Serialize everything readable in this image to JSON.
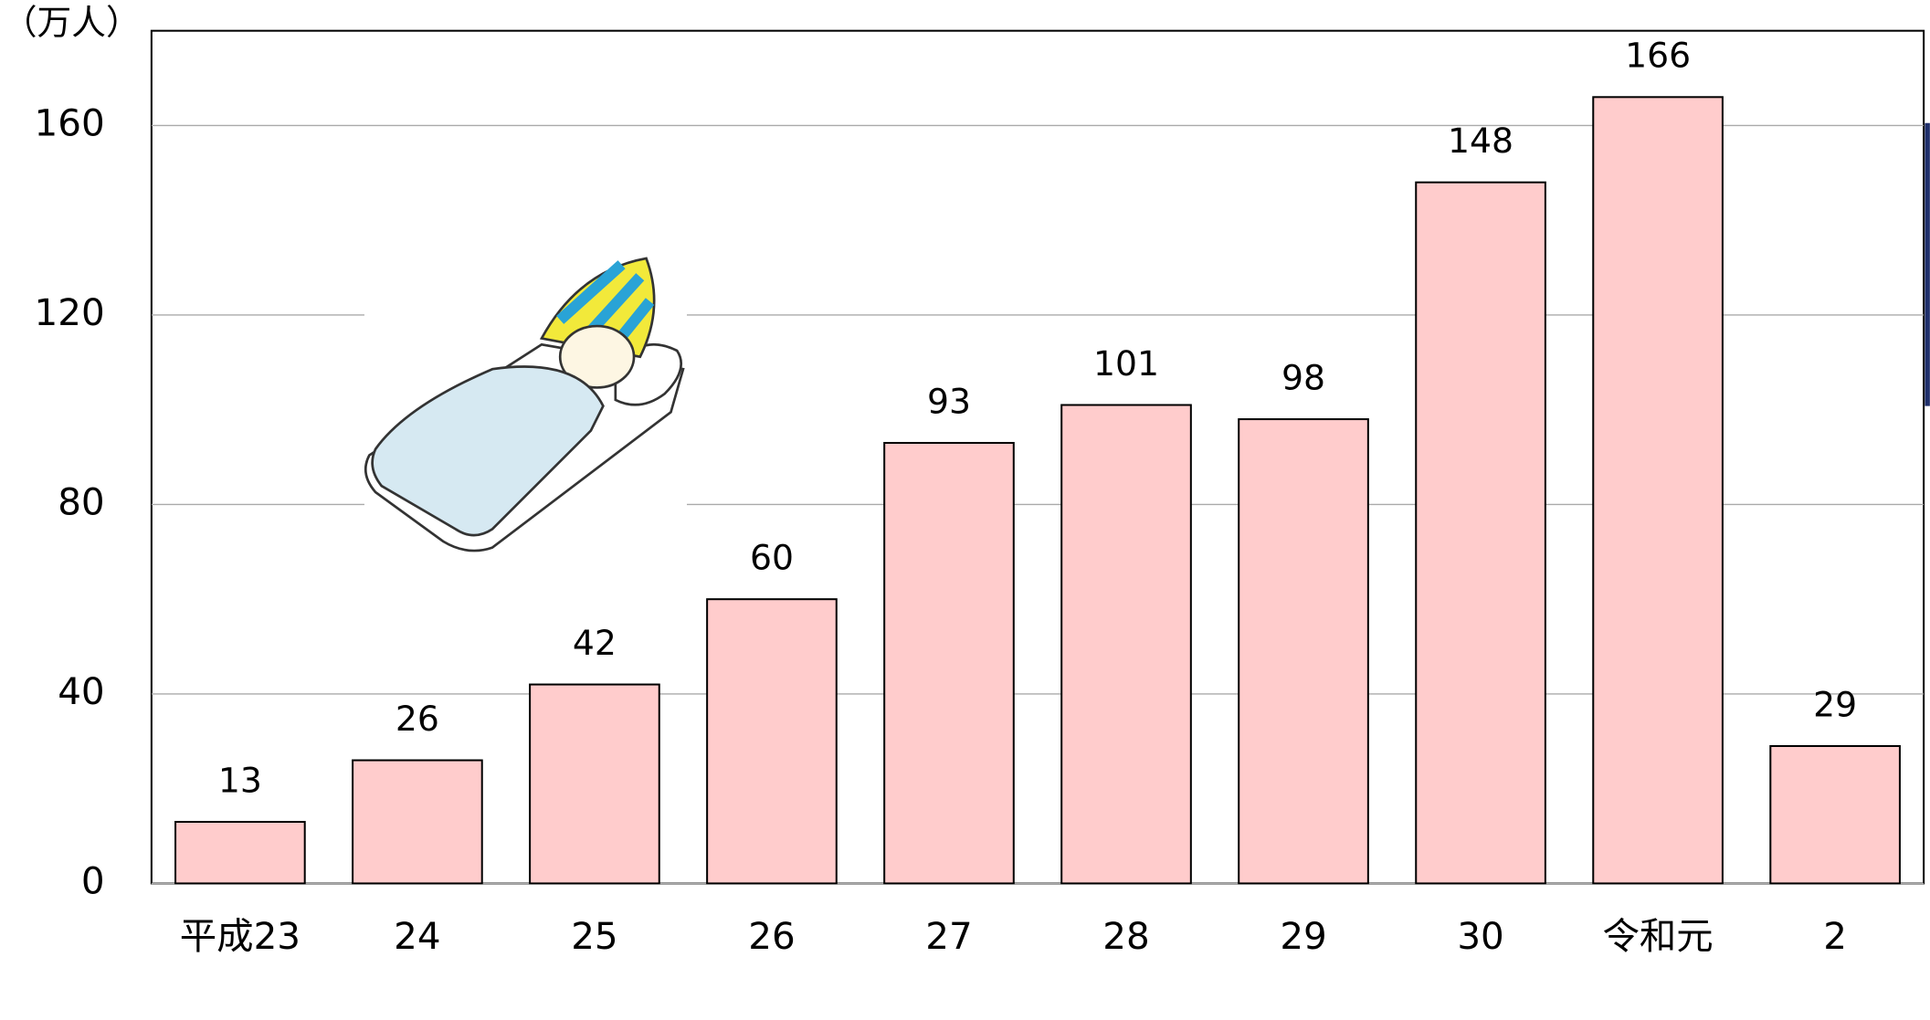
{
  "chart_data": {
    "type": "bar",
    "y_axis_label": "（万人）",
    "categories": [
      "平成23",
      "24",
      "25",
      "26",
      "27",
      "28",
      "29",
      "30",
      "令和元",
      "2"
    ],
    "values": [
      13,
      26,
      42,
      60,
      93,
      101,
      98,
      148,
      166,
      29
    ],
    "color": "#ffcccc",
    "ylim": [
      0,
      180
    ],
    "yticks": [
      0,
      40,
      80,
      120,
      160
    ],
    "grid": true
  }
}
